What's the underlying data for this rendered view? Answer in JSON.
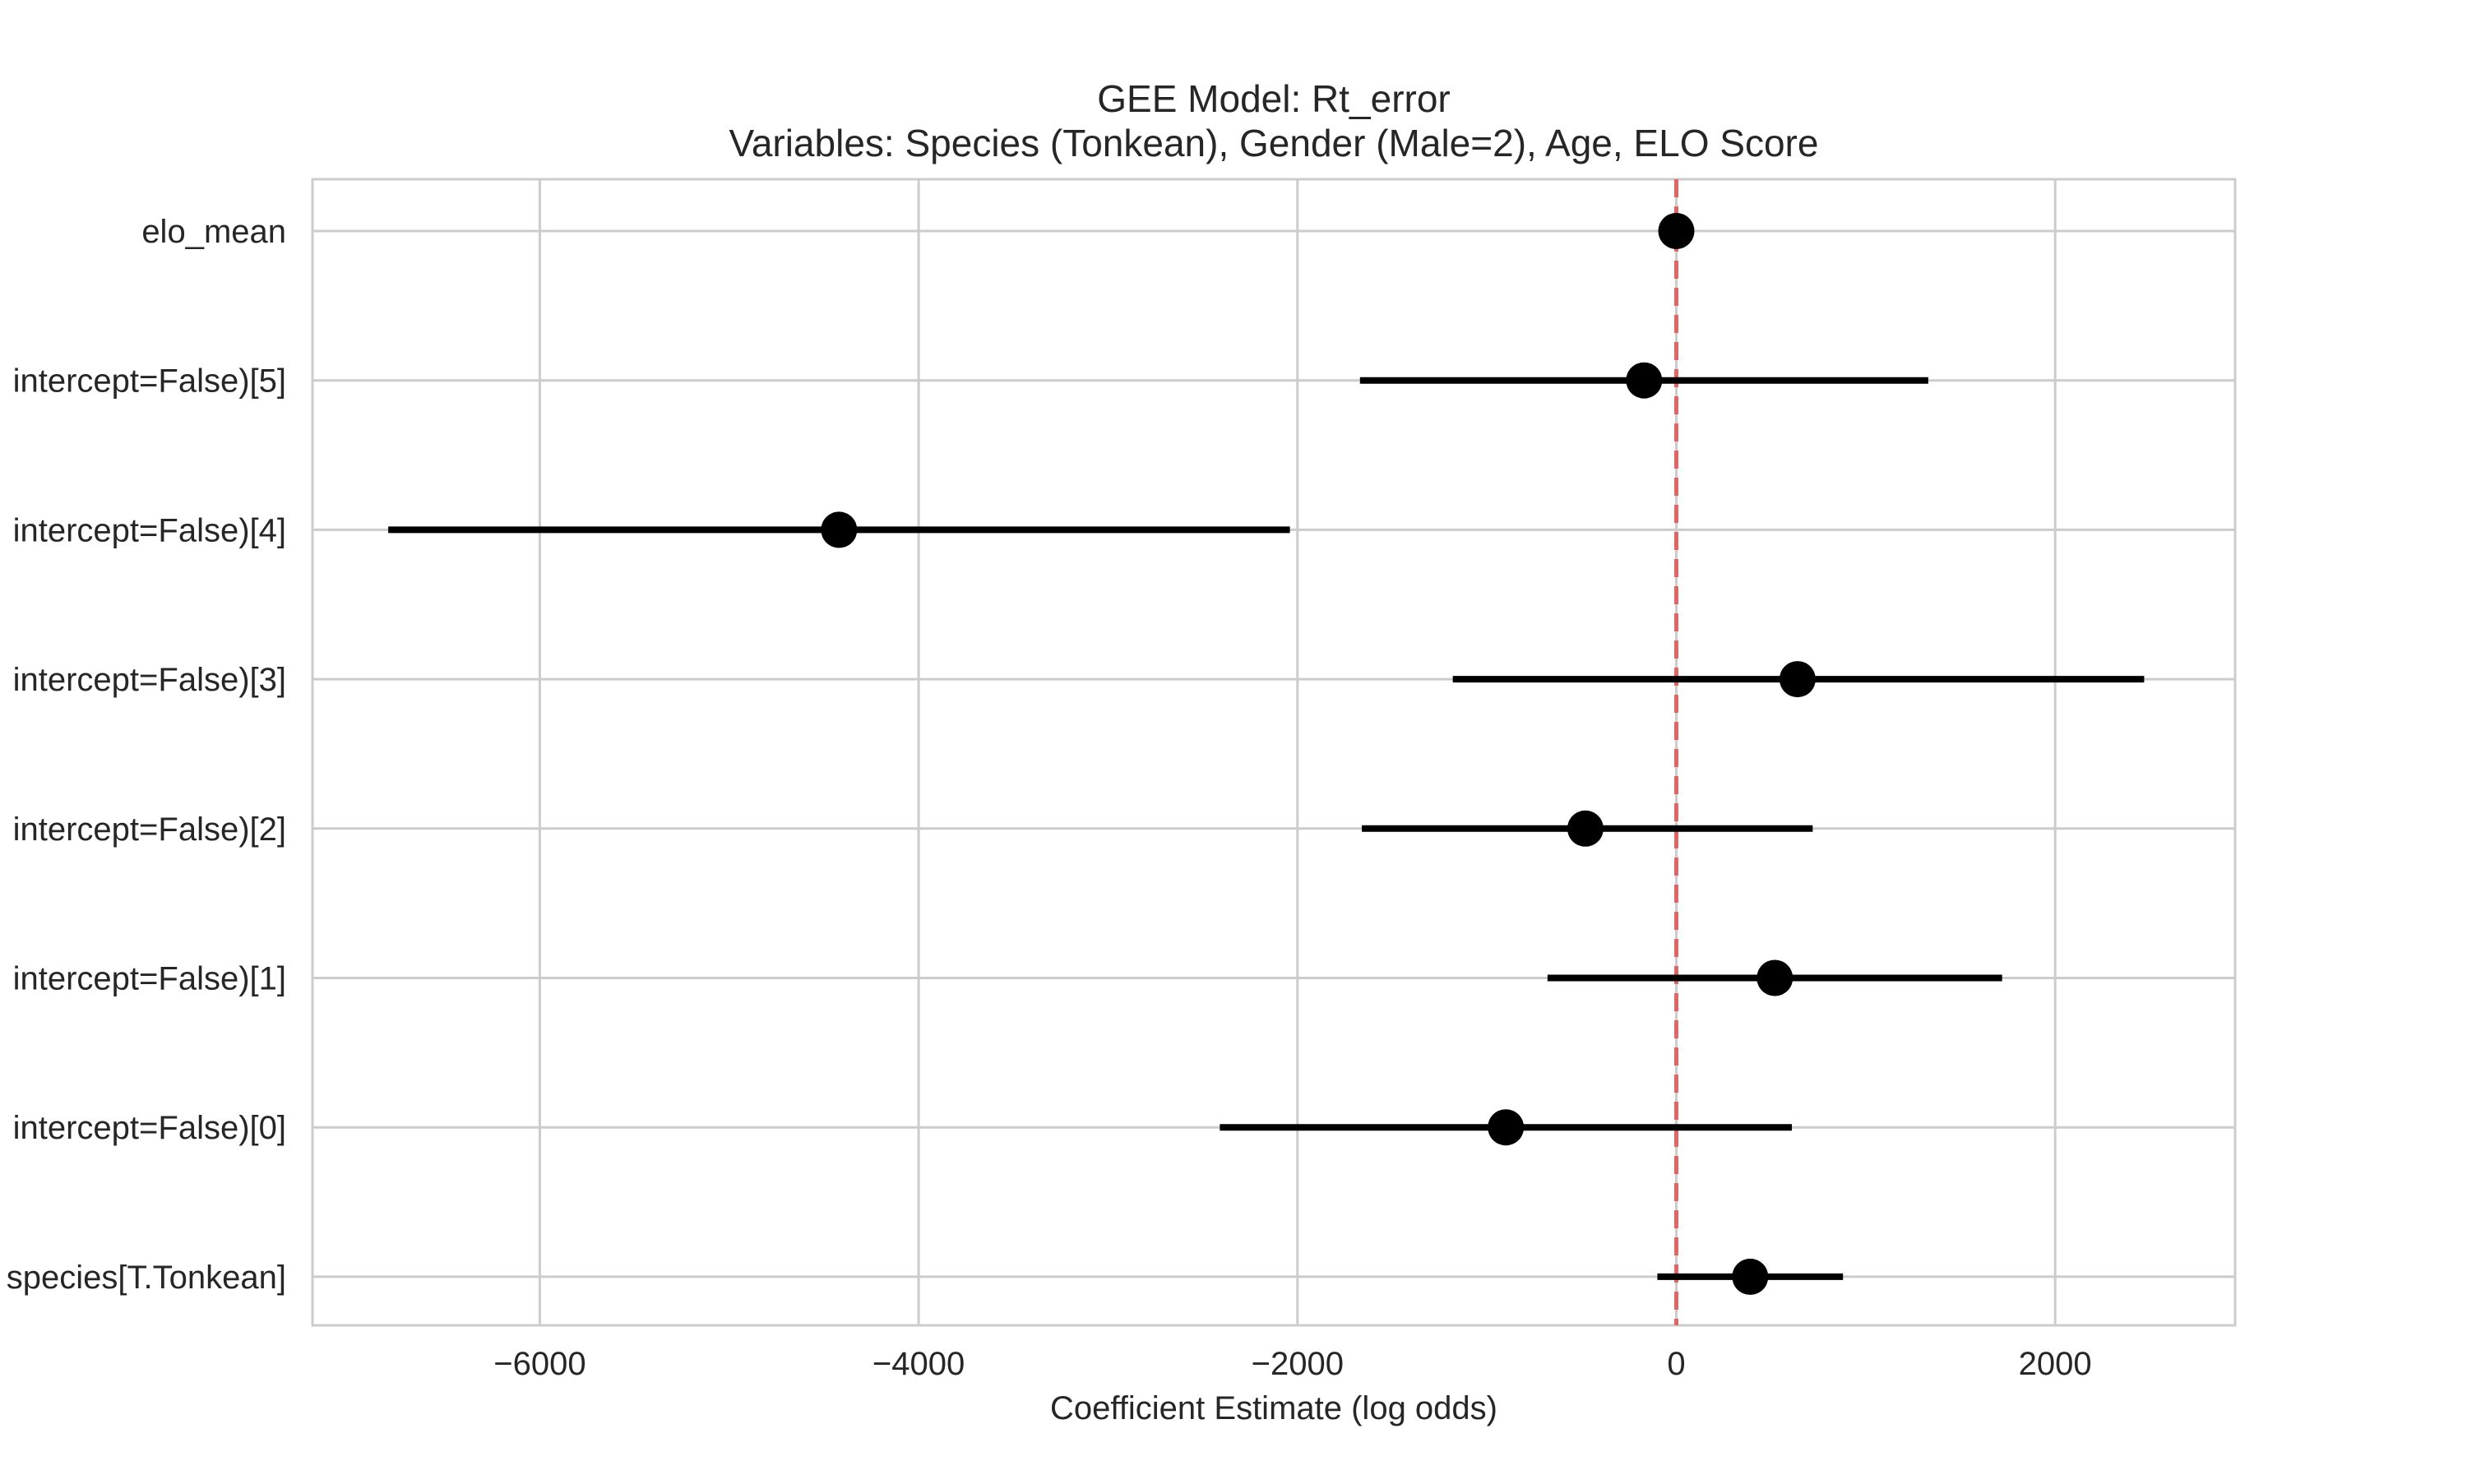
{
  "chart_data": {
    "type": "scatter",
    "title_line1": "GEE Model: Rt_error",
    "title_line2": "Variables: Species (Tonkean), Gender (Male=2), Age, ELO Score",
    "xlabel": "Coefficient Estimate (log odds)",
    "ylabel": "",
    "xlim": [
      -7200,
      2950
    ],
    "xticks": [
      -6000,
      -4000,
      -2000,
      0,
      2000
    ],
    "xtick_labels": [
      "−6000",
      "−4000",
      "−2000",
      "0",
      "2000"
    ],
    "reference_line": {
      "x": 0,
      "style": "dashed",
      "color": "#e06666"
    },
    "grid": true,
    "marker_color": "#000000",
    "rows": [
      {
        "label": "elo_mean",
        "estimate": 0,
        "ci_low": 0,
        "ci_high": 0
      },
      {
        "label": "intercept=False)[5]",
        "estimate": -170,
        "ci_low": -1670,
        "ci_high": 1330
      },
      {
        "label": "intercept=False)[4]",
        "estimate": -4420,
        "ci_low": -6800,
        "ci_high": -2040
      },
      {
        "label": "intercept=False)[3]",
        "estimate": 640,
        "ci_low": -1180,
        "ci_high": 2470
      },
      {
        "label": "intercept=False)[2]",
        "estimate": -480,
        "ci_low": -1660,
        "ci_high": 720
      },
      {
        "label": "intercept=False)[1]",
        "estimate": 520,
        "ci_low": -680,
        "ci_high": 1720
      },
      {
        "label": "intercept=False)[0]",
        "estimate": -900,
        "ci_low": -2410,
        "ci_high": 610
      },
      {
        "label": "species[T.Tonkean]",
        "estimate": 390,
        "ci_low": -100,
        "ci_high": 880
      }
    ]
  }
}
